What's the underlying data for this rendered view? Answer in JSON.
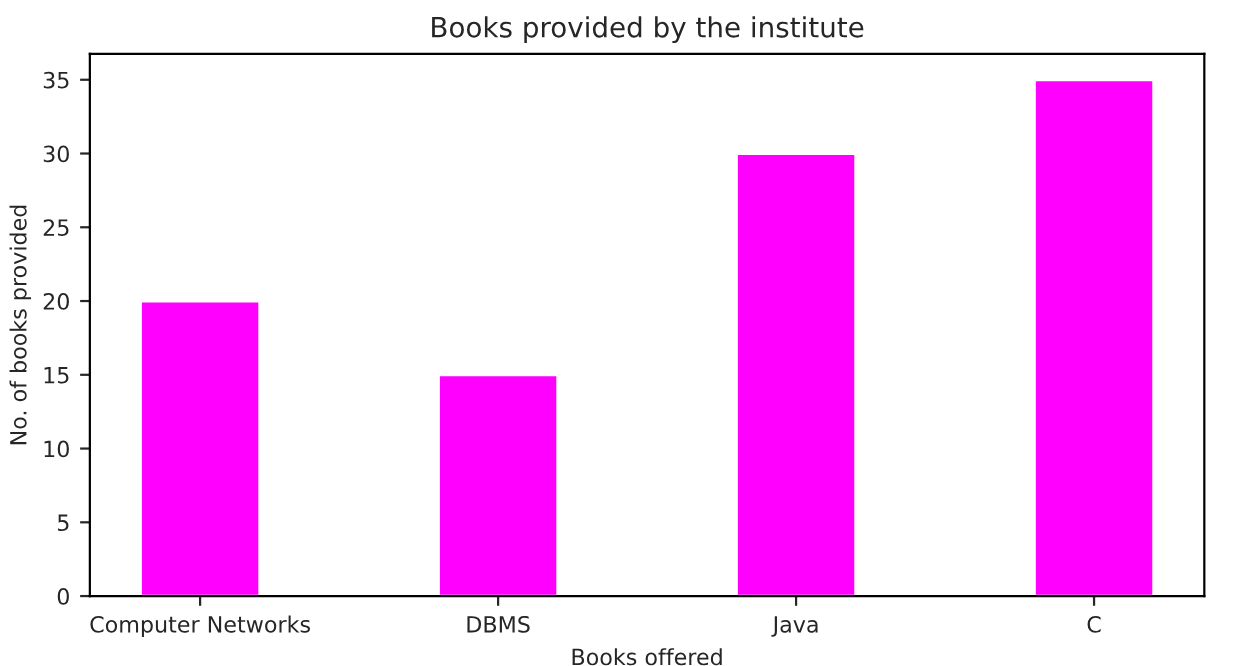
{
  "chart_data": {
    "type": "bar",
    "title": "Books provided by the institute",
    "xlabel": "Books offered",
    "ylabel": "No. of books provided",
    "categories": [
      "Computer Networks",
      "DBMS",
      "Java",
      "C"
    ],
    "values": [
      20,
      15,
      30,
      35
    ],
    "color": "#ff00ff",
    "ylim": [
      0,
      36.75
    ],
    "yticks": [
      0,
      5,
      10,
      15,
      20,
      25,
      30,
      35
    ],
    "grid": false
  }
}
